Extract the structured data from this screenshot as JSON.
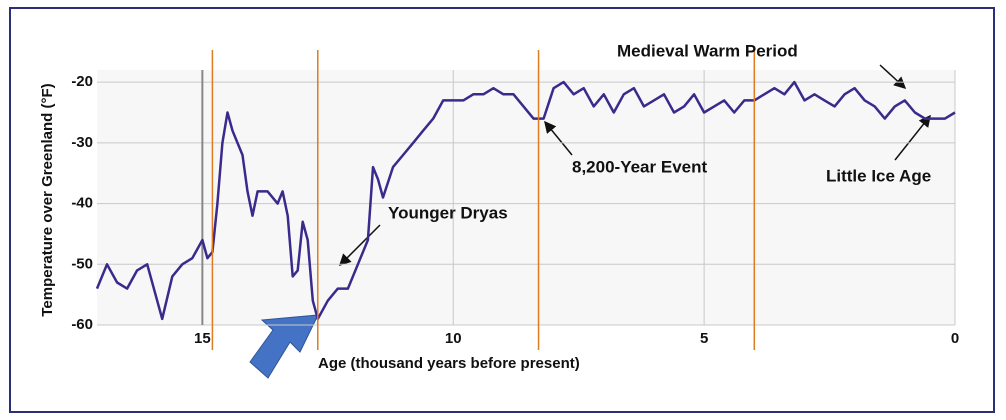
{
  "chart_data": {
    "type": "line",
    "x_label": "Age (thousand years before present)",
    "y_label": "Temperature over Greenland (°F)",
    "xlim": [
      17.1,
      0
    ],
    "xticks": [
      15,
      10,
      5,
      0
    ],
    "ylim": [
      -60,
      -18
    ],
    "yticks": [
      -20,
      -30,
      -40,
      -50,
      -60
    ],
    "grid": true,
    "color": "#3b2a8c",
    "x": [
      17.1,
      16.9,
      16.7,
      16.5,
      16.3,
      16.1,
      15.9,
      15.8,
      15.6,
      15.4,
      15.2,
      15.0,
      14.9,
      14.8,
      14.7,
      14.6,
      14.5,
      14.4,
      14.3,
      14.2,
      14.1,
      14.0,
      13.9,
      13.7,
      13.5,
      13.4,
      13.3,
      13.2,
      13.1,
      13.0,
      12.9,
      12.8,
      12.7,
      12.5,
      12.3,
      12.1,
      11.9,
      11.7,
      11.6,
      11.5,
      11.4,
      11.2,
      11.0,
      10.8,
      10.6,
      10.4,
      10.2,
      10.0,
      9.8,
      9.6,
      9.4,
      9.2,
      9.0,
      8.8,
      8.6,
      8.4,
      8.2,
      8.0,
      7.8,
      7.6,
      7.4,
      7.2,
      7.0,
      6.8,
      6.6,
      6.4,
      6.2,
      6.0,
      5.8,
      5.6,
      5.4,
      5.2,
      5.0,
      4.8,
      4.6,
      4.4,
      4.2,
      4.0,
      3.8,
      3.6,
      3.4,
      3.2,
      3.0,
      2.8,
      2.6,
      2.4,
      2.2,
      2.0,
      1.8,
      1.6,
      1.4,
      1.2,
      1.0,
      0.8,
      0.6,
      0.4,
      0.2,
      0.0
    ],
    "values": [
      -54,
      -50,
      -53,
      -54,
      -51,
      -50,
      -56,
      -59,
      -52,
      -50,
      -49,
      -46,
      -49,
      -48,
      -40,
      -30,
      -25,
      -28,
      -30,
      -32,
      -38,
      -42,
      -38,
      -38,
      -40,
      -38,
      -42,
      -52,
      -51,
      -43,
      -46,
      -56,
      -59,
      -56,
      -54,
      -54,
      -50,
      -46,
      -34,
      -36,
      -39,
      -34,
      -32,
      -30,
      -28,
      -26,
      -23,
      -23,
      -23,
      -22,
      -22,
      -21,
      -22,
      -22,
      -24,
      -26,
      -26,
      -21,
      -20,
      -22,
      -21,
      -24,
      -22,
      -25,
      -22,
      -21,
      -24,
      -23,
      -22,
      -25,
      -24,
      -22,
      -25,
      -24,
      -23,
      -25,
      -23,
      -23,
      -22,
      -21,
      -22,
      -20,
      -23,
      -22,
      -23,
      -24,
      -22,
      -21,
      -23,
      -24,
      -26,
      -24,
      -23,
      -25,
      -26,
      -26,
      -26,
      -25
    ],
    "reference_lines": [
      14.8,
      12.7,
      8.3,
      4.0
    ],
    "reference_line_color": "#e07b20",
    "annotations": [
      "Medieval Warm Period",
      "8,200-Year Event",
      "Younger Dryas",
      "Little Ice Age"
    ]
  }
}
